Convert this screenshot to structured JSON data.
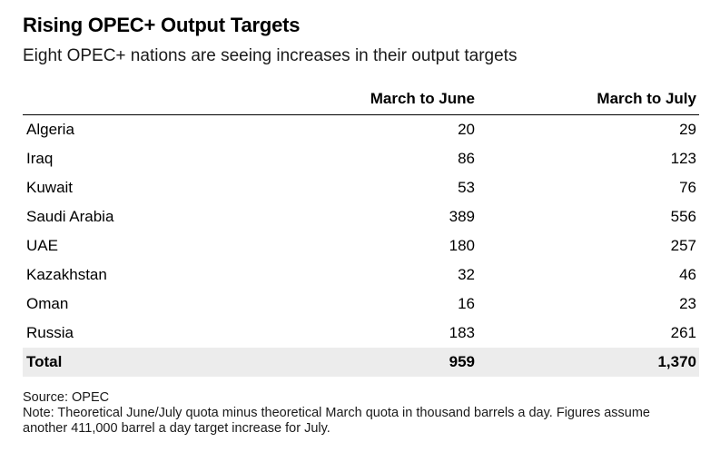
{
  "title": "Rising OPEC+ Output Targets",
  "subtitle": "Eight OPEC+ nations are seeing increases in their output targets",
  "chart_data": {
    "type": "table",
    "title": "Rising OPEC+ Output Targets",
    "subtitle": "Eight OPEC+ nations are seeing increases in their output targets",
    "columns": [
      "",
      "March to June",
      "March to July"
    ],
    "rows": [
      {
        "country": "Algeria",
        "march_to_june": "20",
        "march_to_july": "29"
      },
      {
        "country": "Iraq",
        "march_to_june": "86",
        "march_to_july": "123"
      },
      {
        "country": "Kuwait",
        "march_to_june": "53",
        "march_to_july": "76"
      },
      {
        "country": "Saudi Arabia",
        "march_to_june": "389",
        "march_to_july": "556"
      },
      {
        "country": "UAE",
        "march_to_june": "180",
        "march_to_july": "257"
      },
      {
        "country": "Kazakhstan",
        "march_to_june": "32",
        "march_to_july": "46"
      },
      {
        "country": "Oman",
        "march_to_june": "16",
        "march_to_july": "23"
      },
      {
        "country": "Russia",
        "march_to_june": "183",
        "march_to_july": "261"
      }
    ],
    "total": {
      "label": "Total",
      "march_to_june": "959",
      "march_to_july": "1,370"
    }
  },
  "footer": {
    "source": "Source: OPEC",
    "note": "Note: Theoretical June/July quota minus theoretical March quota in thousand barrels a day. Figures assume another 411,000 barrel a day target increase for July."
  },
  "colors": {
    "total_row_background": "#ececec",
    "header_rule": "#000000"
  }
}
